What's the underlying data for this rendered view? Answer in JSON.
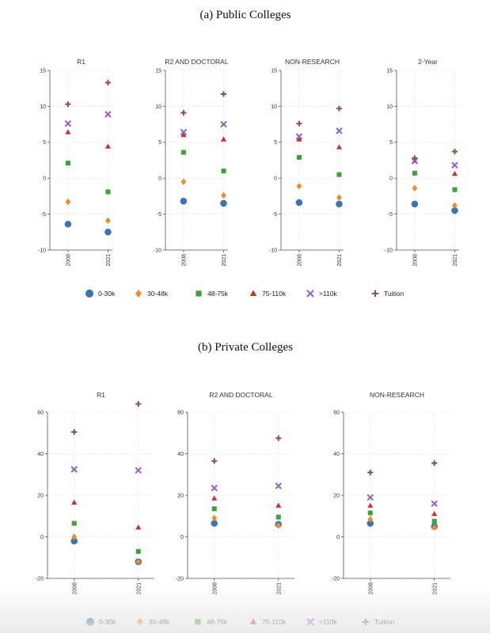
{
  "chart_data": [
    {
      "type": "scatter",
      "section_title": "(a) Public Colleges",
      "ylim": [
        -10,
        15
      ],
      "yticks": [
        -10,
        -5,
        0,
        5,
        10,
        15
      ],
      "categories": [
        "2008",
        "2021"
      ],
      "legend": [
        {
          "name": "0-30k",
          "color": "#3a75b0",
          "marker": "circle"
        },
        {
          "name": "30-48k",
          "color": "#ee8a2b",
          "marker": "diamond"
        },
        {
          "name": "48-75k",
          "color": "#3ea13a",
          "marker": "square"
        },
        {
          "name": "75-110k",
          "color": "#c9302c",
          "marker": "triangle"
        },
        {
          "name": ">110k",
          "color": "#9467bd",
          "marker": "x"
        },
        {
          "name": "Tuition",
          "color": "#8c564b",
          "marker": "plus"
        }
      ],
      "panels": [
        {
          "title": "R1",
          "series": {
            "0-30k": [
              -6.4,
              -7.5
            ],
            "30-48k": [
              -3.3,
              -5.9
            ],
            "48-75k": [
              2.1,
              -1.9
            ],
            "75-110k": [
              6.4,
              4.4
            ],
            ">110k": [
              7.6,
              8.9
            ],
            "Tuition": [
              10.3,
              13.3
            ]
          }
        },
        {
          "title": "R2 AND DOCTORAL",
          "series": {
            "0-30k": [
              -3.2,
              -3.5
            ],
            "30-48k": [
              -0.5,
              -2.4
            ],
            "48-75k": [
              3.6,
              1.0
            ],
            "75-110k": [
              6.0,
              5.4
            ],
            ">110k": [
              6.4,
              7.5
            ],
            "Tuition": [
              9.1,
              11.7
            ]
          }
        },
        {
          "title": "NON-RESEARCH",
          "series": {
            "0-30k": [
              -3.4,
              -3.6
            ],
            "30-48k": [
              -1.1,
              -2.7
            ],
            "48-75k": [
              2.9,
              0.5
            ],
            "75-110k": [
              5.4,
              4.3
            ],
            ">110k": [
              5.8,
              6.6
            ],
            "Tuition": [
              7.6,
              9.7
            ]
          }
        },
        {
          "title": "2-Year",
          "series": {
            "0-30k": [
              -3.6,
              -4.5
            ],
            "30-48k": [
              -1.4,
              -3.8
            ],
            "48-75k": [
              0.7,
              -1.6
            ],
            "75-110k": [
              2.4,
              0.6
            ],
            ">110k": [
              2.4,
              1.8
            ],
            "Tuition": [
              2.8,
              3.7
            ]
          }
        }
      ]
    },
    {
      "type": "scatter",
      "section_title": "(b) Private Colleges",
      "ylim": [
        -20,
        60
      ],
      "yticks": [
        -20,
        0,
        20,
        40,
        60
      ],
      "categories": [
        "2008",
        "2021"
      ],
      "legend": [
        {
          "name": "0-30k",
          "color": "#3a75b0",
          "marker": "circle"
        },
        {
          "name": "30-48k",
          "color": "#ee8a2b",
          "marker": "diamond"
        },
        {
          "name": "48-75k",
          "color": "#3ea13a",
          "marker": "square"
        },
        {
          "name": "75-110k",
          "color": "#c9302c",
          "marker": "triangle"
        },
        {
          "name": ">110k",
          "color": "#9467bd",
          "marker": "x"
        },
        {
          "name": "Tuition",
          "color": "#8c564b",
          "marker": "plus"
        }
      ],
      "panels": [
        {
          "title": "R1",
          "series": {
            "0-30k": [
              -2,
              -12
            ],
            "30-48k": [
              0,
              -12
            ],
            "48-75k": [
              6.5,
              -7
            ],
            "75-110k": [
              16.5,
              4.5
            ],
            ">110k": [
              32.5,
              32
            ],
            "Tuition": [
              50.5,
              64
            ]
          }
        },
        {
          "title": "R2 AND DOCTORAL",
          "series": {
            "0-30k": [
              6.5,
              6
            ],
            "30-48k": [
              9,
              5.5
            ],
            "48-75k": [
              13.5,
              9.5
            ],
            "75-110k": [
              18.5,
              15
            ],
            ">110k": [
              23.5,
              24.5
            ],
            "Tuition": [
              36.5,
              47.5
            ]
          }
        },
        {
          "title": "NON-RESEARCH",
          "series": {
            "0-30k": [
              6.5,
              5
            ],
            "30-48k": [
              8.5,
              4.5
            ],
            "48-75k": [
              11.5,
              7.5
            ],
            "75-110k": [
              15,
              11
            ],
            ">110k": [
              19,
              16
            ],
            "Tuition": [
              31,
              35.5
            ]
          }
        }
      ]
    }
  ]
}
